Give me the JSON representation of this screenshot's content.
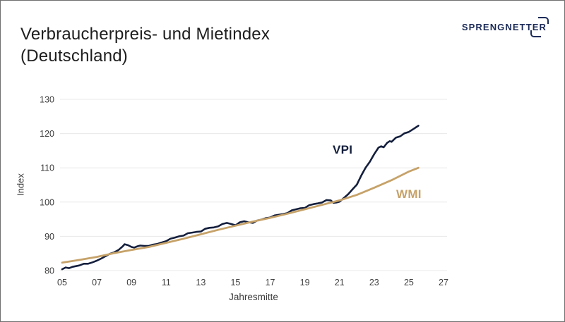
{
  "header": {
    "title_line1": "Verbraucherpreis- und Mietindex",
    "title_line2": "(Deutschland)"
  },
  "logo": {
    "text": "SPRENGNETTER",
    "color": "#1c2b58"
  },
  "chart_data": {
    "type": "line",
    "title": "Verbraucherpreis- und Mietindex (Deutschland)",
    "xlabel": "Jahresmitte",
    "ylabel": "Index",
    "ylim": [
      80,
      130
    ],
    "xlim": [
      2004.85,
      2027.2
    ],
    "yticks": [
      80,
      90,
      100,
      110,
      120,
      130
    ],
    "xticks": [
      {
        "label": "05",
        "year": 2005
      },
      {
        "label": "07",
        "year": 2007
      },
      {
        "label": "09",
        "year": 2009
      },
      {
        "label": "11",
        "year": 2011
      },
      {
        "label": "13",
        "year": 2013
      },
      {
        "label": "15",
        "year": 2015
      },
      {
        "label": "17",
        "year": 2017
      },
      {
        "label": "19",
        "year": 2019
      },
      {
        "label": "21",
        "year": 2021
      },
      {
        "label": "23",
        "year": 2023
      },
      {
        "label": "25",
        "year": 2025
      },
      {
        "label": "27",
        "year": 2027
      }
    ],
    "grid": "horizontal",
    "grid_color": "#e8e8e8",
    "axis_text_color": "#3d3d3d",
    "legend_position": "inline-labels",
    "series": [
      {
        "name": "VPI",
        "color": "#141f3d",
        "width": 2.6,
        "points": [
          [
            2005.0,
            80.4
          ],
          [
            2005.2,
            80.9
          ],
          [
            2005.4,
            80.7
          ],
          [
            2005.6,
            81.1
          ],
          [
            2005.8,
            81.3
          ],
          [
            2006.0,
            81.5
          ],
          [
            2006.25,
            82.0
          ],
          [
            2006.5,
            82.0
          ],
          [
            2006.75,
            82.4
          ],
          [
            2007.0,
            82.9
          ],
          [
            2007.25,
            83.5
          ],
          [
            2007.5,
            84.2
          ],
          [
            2007.75,
            84.9
          ],
          [
            2008.0,
            85.3
          ],
          [
            2008.25,
            86.0
          ],
          [
            2008.5,
            87.1
          ],
          [
            2008.6,
            87.7
          ],
          [
            2008.8,
            87.4
          ],
          [
            2009.0,
            86.9
          ],
          [
            2009.15,
            86.7
          ],
          [
            2009.35,
            87.1
          ],
          [
            2009.5,
            87.3
          ],
          [
            2009.75,
            87.2
          ],
          [
            2010.0,
            87.2
          ],
          [
            2010.25,
            87.6
          ],
          [
            2010.5,
            87.8
          ],
          [
            2010.75,
            88.2
          ],
          [
            2011.0,
            88.6
          ],
          [
            2011.25,
            89.3
          ],
          [
            2011.5,
            89.6
          ],
          [
            2011.75,
            90.0
          ],
          [
            2012.0,
            90.2
          ],
          [
            2012.25,
            90.9
          ],
          [
            2012.5,
            91.1
          ],
          [
            2012.75,
            91.3
          ],
          [
            2013.0,
            91.4
          ],
          [
            2013.25,
            92.2
          ],
          [
            2013.5,
            92.5
          ],
          [
            2013.75,
            92.6
          ],
          [
            2014.0,
            92.9
          ],
          [
            2014.25,
            93.6
          ],
          [
            2014.5,
            93.9
          ],
          [
            2014.75,
            93.6
          ],
          [
            2015.0,
            93.2
          ],
          [
            2015.25,
            94.1
          ],
          [
            2015.5,
            94.4
          ],
          [
            2015.75,
            94.1
          ],
          [
            2016.0,
            93.9
          ],
          [
            2016.25,
            94.6
          ],
          [
            2016.5,
            94.9
          ],
          [
            2016.75,
            95.3
          ],
          [
            2017.0,
            95.5
          ],
          [
            2017.25,
            96.1
          ],
          [
            2017.5,
            96.3
          ],
          [
            2017.75,
            96.5
          ],
          [
            2018.0,
            96.8
          ],
          [
            2018.25,
            97.6
          ],
          [
            2018.5,
            97.9
          ],
          [
            2018.75,
            98.2
          ],
          [
            2019.0,
            98.3
          ],
          [
            2019.25,
            99.1
          ],
          [
            2019.5,
            99.4
          ],
          [
            2019.75,
            99.6
          ],
          [
            2020.0,
            99.9
          ],
          [
            2020.25,
            100.6
          ],
          [
            2020.5,
            100.5
          ],
          [
            2020.65,
            99.8
          ],
          [
            2020.85,
            99.9
          ],
          [
            2021.0,
            100.1
          ],
          [
            2021.25,
            101.2
          ],
          [
            2021.5,
            102.3
          ],
          [
            2021.75,
            103.7
          ],
          [
            2022.0,
            105.1
          ],
          [
            2022.25,
            107.7
          ],
          [
            2022.5,
            110.0
          ],
          [
            2022.75,
            111.8
          ],
          [
            2023.0,
            114.0
          ],
          [
            2023.25,
            115.9
          ],
          [
            2023.4,
            116.3
          ],
          [
            2023.55,
            116.0
          ],
          [
            2023.75,
            117.3
          ],
          [
            2023.9,
            117.8
          ],
          [
            2024.0,
            117.6
          ],
          [
            2024.25,
            118.8
          ],
          [
            2024.5,
            119.2
          ],
          [
            2024.75,
            120.1
          ],
          [
            2025.0,
            120.5
          ],
          [
            2025.25,
            121.3
          ],
          [
            2025.4,
            121.8
          ],
          [
            2025.55,
            122.3
          ]
        ]
      },
      {
        "name": "WMI",
        "color": "#c6a269",
        "width": 2.8,
        "points": [
          [
            2005.0,
            82.3
          ],
          [
            2006.0,
            83.1
          ],
          [
            2007.0,
            84.0
          ],
          [
            2008.0,
            85.1
          ],
          [
            2009.0,
            86.0
          ],
          [
            2010.0,
            86.9
          ],
          [
            2011.0,
            88.1
          ],
          [
            2012.0,
            89.3
          ],
          [
            2013.0,
            90.6
          ],
          [
            2014.0,
            91.9
          ],
          [
            2015.0,
            93.1
          ],
          [
            2016.0,
            94.3
          ],
          [
            2017.0,
            95.4
          ],
          [
            2018.0,
            96.6
          ],
          [
            2019.0,
            97.9
          ],
          [
            2020.0,
            99.2
          ],
          [
            2021.0,
            100.5
          ],
          [
            2022.0,
            102.1
          ],
          [
            2023.0,
            104.2
          ],
          [
            2024.0,
            106.4
          ],
          [
            2025.0,
            108.9
          ],
          [
            2025.55,
            110.0
          ]
        ]
      }
    ]
  }
}
